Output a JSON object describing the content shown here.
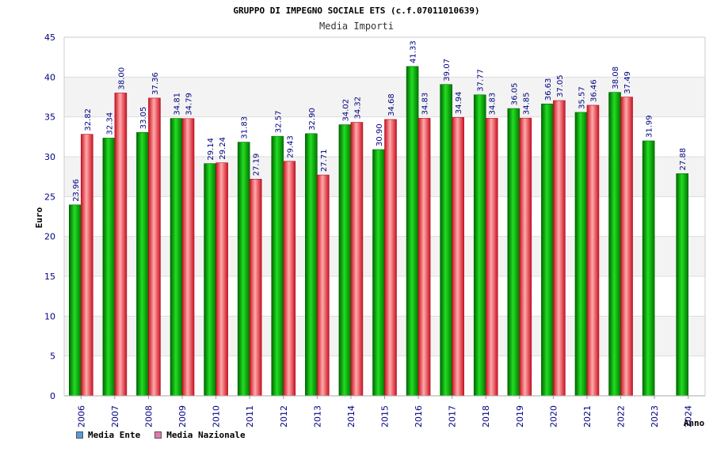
{
  "chart_data": {
    "type": "bar",
    "title": "GRUPPO DI IMPEGNO SOCIALE ETS (c.f.07011010639)",
    "subtitle": "Media Importi",
    "xlabel": "Anno",
    "ylabel": "Euro",
    "ylim": [
      0,
      45
    ],
    "yticks": [
      0,
      5,
      10,
      15,
      20,
      25,
      30,
      35,
      40,
      45
    ],
    "categories": [
      "2006",
      "2007",
      "2008",
      "2009",
      "2010",
      "2011",
      "2012",
      "2013",
      "2014",
      "2015",
      "2016",
      "2017",
      "2018",
      "2019",
      "2020",
      "2021",
      "2022",
      "2023",
      "2024"
    ],
    "series": [
      {
        "name": "Media Ente",
        "color": "#00b000",
        "values": [
          23.96,
          32.34,
          33.05,
          34.81,
          29.14,
          31.83,
          32.57,
          32.9,
          34.02,
          30.9,
          41.33,
          39.07,
          37.77,
          36.05,
          36.63,
          35.57,
          38.08,
          31.99,
          27.88
        ],
        "labels": [
          "23.96",
          "32.34",
          "33.05",
          "34.81",
          "29.14",
          "31.83",
          "32.57",
          "32.90",
          "34.02",
          "30.90",
          "41.33",
          "39.07",
          "37.77",
          "36.05",
          "36.63",
          "35.57",
          "38.08",
          "31.99",
          "27.88"
        ]
      },
      {
        "name": "Media Nazionale",
        "color": "#e03040",
        "values": [
          32.82,
          38.0,
          37.36,
          34.79,
          29.24,
          27.19,
          29.43,
          27.71,
          34.32,
          34.68,
          34.83,
          34.94,
          34.83,
          34.85,
          37.05,
          36.46,
          37.49,
          null,
          null
        ],
        "labels": [
          "32.82",
          "38.00",
          "37.36",
          "34.79",
          "29.24",
          "27.19",
          "29.43",
          "27.71",
          "34.32",
          "34.68",
          "34.83",
          "34.94",
          "34.83",
          "34.85",
          "37.05",
          "36.46",
          "37.49",
          null,
          null
        ]
      }
    ],
    "legend": [
      {
        "label": "Media Ente",
        "color": "#5b9bd5"
      },
      {
        "label": "Media Nazionale",
        "color": "#e07ab0"
      }
    ],
    "grid": true,
    "legend_position": "bottom-left"
  }
}
